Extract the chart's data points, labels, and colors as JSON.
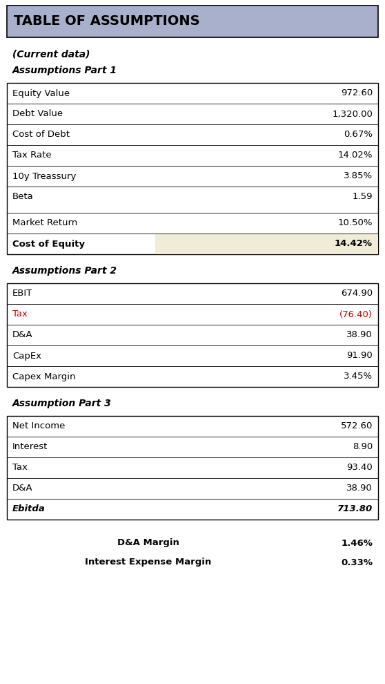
{
  "title": "TABLE OF ASSUMPTIONS",
  "title_bg": "#a8b0cc",
  "subtitle1": "(Current data)",
  "subtitle2": "Assumptions Part 1",
  "subtitle3": "Assumptions Part 2",
  "subtitle4": "Assumption Part 3",
  "part1_rows": [
    {
      "label": "Equity Value",
      "value": "972.60",
      "bold_label": false,
      "bold_val": false,
      "italic": false,
      "val_color": "#000000",
      "highlight": false
    },
    {
      "label": "Debt Value",
      "value": "1,320.00",
      "bold_label": false,
      "bold_val": false,
      "italic": false,
      "val_color": "#000000",
      "highlight": false
    },
    {
      "label": "Cost of Debt",
      "value": "0.67%",
      "bold_label": false,
      "bold_val": false,
      "italic": false,
      "val_color": "#000000",
      "highlight": false
    },
    {
      "label": "Tax Rate",
      "value": "14.02%",
      "bold_label": false,
      "bold_val": false,
      "italic": false,
      "val_color": "#000000",
      "highlight": false
    },
    {
      "label": "10y Treassury",
      "value": "3.85%",
      "bold_label": false,
      "bold_val": false,
      "italic": false,
      "val_color": "#000000",
      "highlight": false
    },
    {
      "label": "Beta",
      "value": "1.59",
      "bold_label": false,
      "bold_val": false,
      "italic": false,
      "val_color": "#000000",
      "highlight": false
    },
    {
      "label": "Market Return",
      "value": "10.50%",
      "bold_label": false,
      "bold_val": false,
      "italic": false,
      "val_color": "#000000",
      "highlight": false
    },
    {
      "label": "Cost of Equity",
      "value": "14.42%",
      "bold_label": true,
      "bold_val": true,
      "italic": false,
      "val_color": "#000000",
      "highlight": true
    }
  ],
  "part2_rows": [
    {
      "label": "EBIT",
      "value": "674.90",
      "bold_label": false,
      "bold_val": false,
      "italic": false,
      "label_color": "#000000",
      "val_color": "#000000"
    },
    {
      "label": "Tax",
      "value": "(76.40)",
      "bold_label": false,
      "bold_val": false,
      "italic": false,
      "label_color": "#cc0000",
      "val_color": "#cc0000"
    },
    {
      "label": "D&A",
      "value": "38.90",
      "bold_label": false,
      "bold_val": false,
      "italic": false,
      "label_color": "#000000",
      "val_color": "#000000"
    },
    {
      "label": "CapEx",
      "value": "91.90",
      "bold_label": false,
      "bold_val": false,
      "italic": false,
      "label_color": "#000000",
      "val_color": "#000000"
    },
    {
      "label": "Capex Margin",
      "value": "3.45%",
      "bold_label": false,
      "bold_val": false,
      "italic": false,
      "label_color": "#000000",
      "val_color": "#000000"
    }
  ],
  "part3_rows": [
    {
      "label": "Net Income",
      "value": "572.60",
      "bold_label": false,
      "bold_val": false,
      "italic_label": false,
      "label_color": "#000000",
      "val_color": "#000000"
    },
    {
      "label": "Interest",
      "value": "8.90",
      "bold_label": false,
      "bold_val": false,
      "italic_label": false,
      "label_color": "#000000",
      "val_color": "#000000"
    },
    {
      "label": "Tax",
      "value": "93.40",
      "bold_label": false,
      "bold_val": false,
      "italic_label": false,
      "label_color": "#000000",
      "val_color": "#000000"
    },
    {
      "label": "D&A",
      "value": "38.90",
      "bold_label": false,
      "bold_val": false,
      "italic_label": false,
      "label_color": "#000000",
      "val_color": "#000000"
    },
    {
      "label": "Ebitda",
      "value": "713.80",
      "bold_label": true,
      "bold_val": true,
      "italic_label": true,
      "label_color": "#000000",
      "val_color": "#000000"
    }
  ],
  "footer_rows": [
    {
      "label": "D&A Margin",
      "value": "1.46%",
      "bold": true,
      "color": "#000000"
    },
    {
      "label": "Interest Expense Margin",
      "value": "0.33%",
      "bold": true,
      "color": "#000000"
    }
  ],
  "highlight_color": "#f0ecd8",
  "border_color": "#000000",
  "bg_color": "#ffffff",
  "text_color": "#000000"
}
